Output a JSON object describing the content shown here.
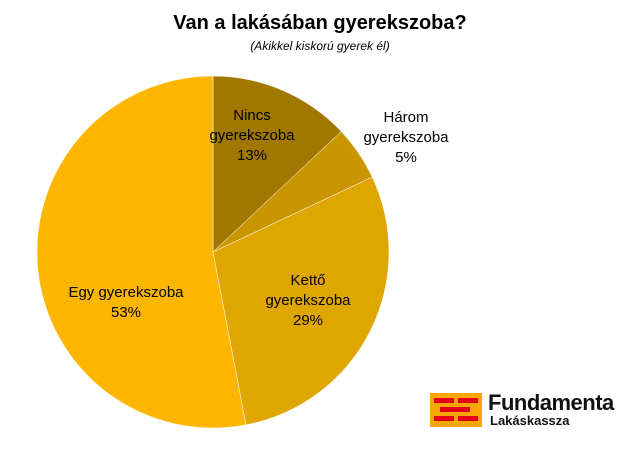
{
  "chart_data": {
    "type": "pie",
    "title": "Van a lakásában gyerekszoba?",
    "subtitle": "(Akikkel kiskorú gyerek él)",
    "slices": [
      {
        "label_lines": [
          "Nincs",
          "gyerekszoba"
        ],
        "percent_label": "13%",
        "value": 13,
        "color": "#a07800"
      },
      {
        "label_lines": [
          "Három",
          "gyerekszoba"
        ],
        "percent_label": "5%",
        "value": 5,
        "color": "#c99600"
      },
      {
        "label_lines": [
          "Kettő",
          "gyerekszoba"
        ],
        "percent_label": "29%",
        "value": 29,
        "color": "#e0a600"
      },
      {
        "label_lines": [
          "Egy gyerekszoba"
        ],
        "percent_label": "53%",
        "value": 53,
        "color": "#fdb600"
      }
    ]
  },
  "logo": {
    "name": "Fundamenta",
    "sub": "Lakáskassza",
    "colors": {
      "background": "#f7a600",
      "bricks": "#e2001a"
    }
  }
}
